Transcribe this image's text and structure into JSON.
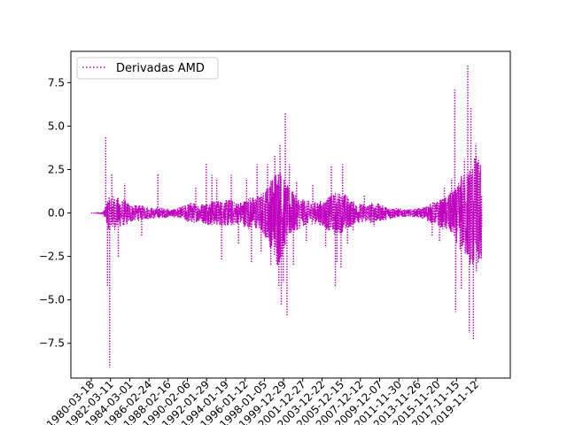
{
  "chart_data": {
    "type": "line",
    "legend": {
      "label": "Derivadas AMD",
      "placement": "top-left"
    },
    "series": [
      {
        "name": "Derivadas AMD",
        "color": "#bf00bf",
        "line_style": "dotted"
      }
    ],
    "ylim": [
      -9.5,
      9.3
    ],
    "y_ticks": [
      -7.5,
      -5.0,
      -2.5,
      0.0,
      2.5,
      5.0,
      7.5
    ],
    "y_tick_labels": [
      "−7.5",
      "−5.0",
      "−2.5",
      "0.0",
      "2.5",
      "5.0",
      "7.5"
    ],
    "x_tick_labels": [
      "1980-03-18",
      "1982-03-11",
      "1984-03-01",
      "1986-02-24",
      "1988-02-16",
      "1990-02-06",
      "1992-01-29",
      "1994-01-19",
      "1996-01-12",
      "1998-01-05",
      "1999-12-29",
      "2001-12-27",
      "2003-12-22",
      "2005-12-15",
      "2007-12-12",
      "2009-12-07",
      "2011-11-30",
      "2013-11-26",
      "2015-11-20",
      "2017-11-15",
      "2019-11-12"
    ],
    "x_range": [
      "1980-03-18",
      "2020-07-15"
    ],
    "envelope": {
      "x": [
        "1980-03-18",
        "1981-06-01",
        "1981-09-01",
        "1981-12-01",
        "1982-06-01",
        "1983-06-01",
        "1984-06-01",
        "1985-06-01",
        "1986-06-01",
        "1987-06-01",
        "1988-06-01",
        "1989-06-01",
        "1990-06-01",
        "1991-06-01",
        "1992-06-01",
        "1993-06-01",
        "1994-06-01",
        "1995-06-01",
        "1996-06-01",
        "1997-06-01",
        "1997-12-01",
        "1998-06-01",
        "1999-01-01",
        "1999-06-01",
        "2000-01-01",
        "2000-06-01",
        "2001-06-01",
        "2002-06-01",
        "2003-06-01",
        "2004-06-01",
        "2005-06-01",
        "2006-06-01",
        "2007-06-01",
        "2008-06-01",
        "2009-06-01",
        "2010-06-01",
        "2011-06-01",
        "2012-06-01",
        "2013-06-01",
        "2014-06-01",
        "2015-06-01",
        "2016-06-01",
        "2017-06-01",
        "2018-01-01",
        "2018-06-01",
        "2019-01-01",
        "2019-06-01",
        "2020-01-01",
        "2020-07-15"
      ],
      "upper": [
        0.0,
        0.05,
        0.3,
        0.9,
        1.0,
        0.8,
        0.5,
        0.4,
        0.3,
        0.3,
        0.2,
        0.3,
        0.6,
        0.5,
        0.7,
        0.7,
        0.8,
        0.6,
        0.9,
        1.0,
        1.2,
        1.6,
        2.2,
        3.0,
        2.2,
        1.6,
        1.0,
        0.7,
        0.6,
        0.8,
        1.2,
        1.1,
        0.6,
        0.5,
        0.6,
        0.4,
        0.3,
        0.2,
        0.2,
        0.3,
        0.6,
        0.8,
        1.2,
        1.5,
        2.2,
        2.5,
        3.0,
        3.5,
        2.8
      ],
      "lower": [
        0.0,
        -0.05,
        -0.3,
        -0.9,
        -1.0,
        -0.8,
        -0.5,
        -0.4,
        -0.3,
        -0.3,
        -0.2,
        -0.3,
        -0.6,
        -0.5,
        -0.7,
        -0.7,
        -0.8,
        -0.6,
        -0.9,
        -1.0,
        -1.2,
        -1.6,
        -2.4,
        -3.2,
        -2.4,
        -1.6,
        -1.0,
        -0.7,
        -0.6,
        -0.9,
        -1.3,
        -1.1,
        -0.6,
        -0.5,
        -0.6,
        -0.4,
        -0.3,
        -0.2,
        -0.2,
        -0.3,
        -0.6,
        -0.9,
        -1.3,
        -1.8,
        -2.3,
        -2.8,
        -3.2,
        -3.6,
        -3.0
      ]
    },
    "spikes": [
      {
        "x": "1981-09-15",
        "y": 4.4
      },
      {
        "x": "1981-11-20",
        "y": -4.2
      },
      {
        "x": "1982-02-10",
        "y": -8.9
      },
      {
        "x": "1982-05-01",
        "y": 2.3
      },
      {
        "x": "1983-01-01",
        "y": -2.6
      },
      {
        "x": "1983-09-01",
        "y": 1.7
      },
      {
        "x": "1985-06-01",
        "y": -1.3
      },
      {
        "x": "1987-02-01",
        "y": 2.3
      },
      {
        "x": "1991-01-01",
        "y": 1.5
      },
      {
        "x": "1992-02-01",
        "y": 2.9
      },
      {
        "x": "1992-09-01",
        "y": 2.2
      },
      {
        "x": "1993-03-01",
        "y": 2.0
      },
      {
        "x": "1993-09-01",
        "y": -2.7
      },
      {
        "x": "1994-09-01",
        "y": 2.2
      },
      {
        "x": "1995-06-01",
        "y": -1.8
      },
      {
        "x": "1996-04-01",
        "y": 2.0
      },
      {
        "x": "1996-10-01",
        "y": -2.9
      },
      {
        "x": "1997-05-01",
        "y": 2.8
      },
      {
        "x": "1997-10-01",
        "y": -2.3
      },
      {
        "x": "1998-06-01",
        "y": 2.8
      },
      {
        "x": "1998-10-01",
        "y": -3.0
      },
      {
        "x": "1999-03-01",
        "y": 3.3
      },
      {
        "x": "1999-08-01",
        "y": -4.2
      },
      {
        "x": "1999-09-15",
        "y": 3.9
      },
      {
        "x": "1999-11-01",
        "y": -5.3
      },
      {
        "x": "2000-01-15",
        "y": -4.0
      },
      {
        "x": "2000-04-01",
        "y": 5.8
      },
      {
        "x": "2000-06-01",
        "y": -5.9
      },
      {
        "x": "2000-09-01",
        "y": 2.8
      },
      {
        "x": "2001-02-01",
        "y": -3.0
      },
      {
        "x": "2001-06-01",
        "y": 1.8
      },
      {
        "x": "2002-06-01",
        "y": -1.7
      },
      {
        "x": "2003-02-01",
        "y": 1.6
      },
      {
        "x": "2004-06-01",
        "y": -2.0
      },
      {
        "x": "2005-01-01",
        "y": 2.7
      },
      {
        "x": "2005-06-01",
        "y": -4.3
      },
      {
        "x": "2005-08-01",
        "y": -2.9
      },
      {
        "x": "2006-01-01",
        "y": -3.2
      },
      {
        "x": "2006-03-01",
        "y": 2.8
      },
      {
        "x": "2006-09-01",
        "y": -1.8
      },
      {
        "x": "2007-04-01",
        "y": -1.0
      },
      {
        "x": "2008-06-01",
        "y": 1.0
      },
      {
        "x": "2009-06-01",
        "y": -0.8
      },
      {
        "x": "2015-06-01",
        "y": -1.3
      },
      {
        "x": "2016-03-01",
        "y": -1.7
      },
      {
        "x": "2016-09-01",
        "y": 1.5
      },
      {
        "x": "2017-06-01",
        "y": 2.0
      },
      {
        "x": "2017-10-01",
        "y": 7.1
      },
      {
        "x": "2017-11-01",
        "y": -5.7
      },
      {
        "x": "2018-06-01",
        "y": -4.4
      },
      {
        "x": "2018-10-01",
        "y": 3.1
      },
      {
        "x": "2019-02-01",
        "y": 8.5
      },
      {
        "x": "2019-04-01",
        "y": -6.9
      },
      {
        "x": "2019-06-01",
        "y": 6.1
      },
      {
        "x": "2019-09-01",
        "y": -7.3
      },
      {
        "x": "2019-12-01",
        "y": 4.0
      }
    ]
  }
}
